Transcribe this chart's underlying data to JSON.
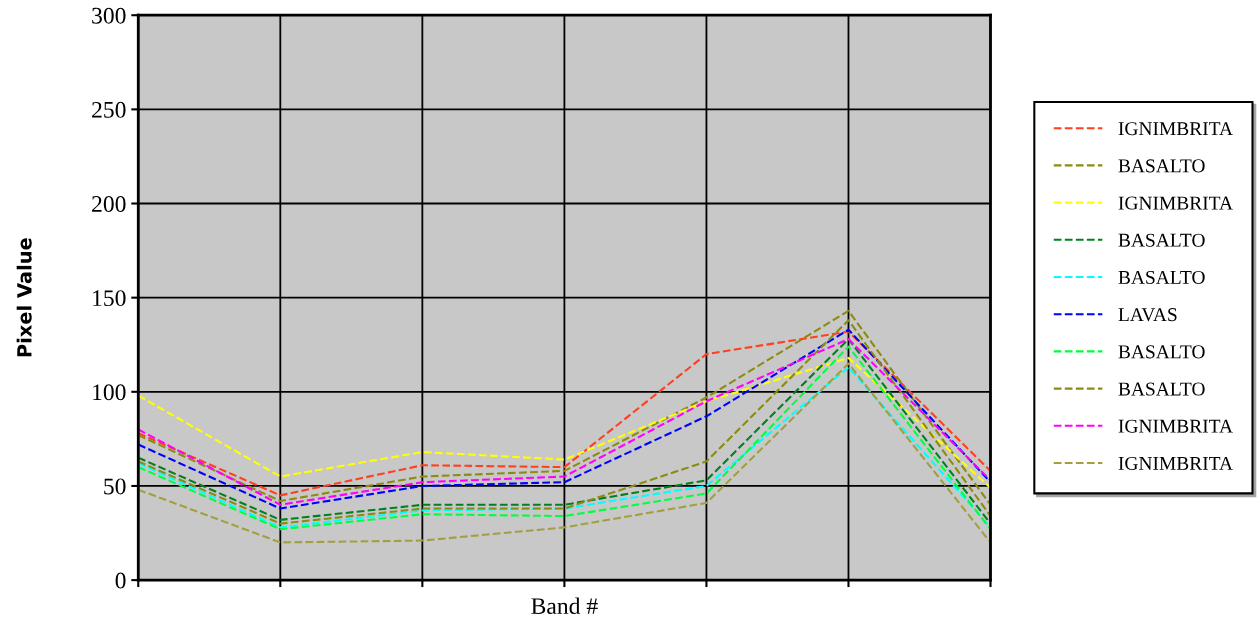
{
  "chart_data": {
    "type": "line",
    "xlabel": "Band #",
    "ylabel": "Pixel Value",
    "categories": [
      null,
      null,
      null,
      null,
      null,
      null,
      null
    ],
    "ylim": [
      0,
      300
    ],
    "yticks": [
      0,
      50,
      100,
      150,
      200,
      250,
      300
    ],
    "grid": true,
    "legend": "right",
    "line_style": "dashed",
    "marker": "none",
    "series": [
      {
        "name": "IGNIMBRITA",
        "color": "#ff4020",
        "values": [
          78,
          45,
          61,
          60,
          120,
          132,
          58
        ]
      },
      {
        "name": "BASALTO",
        "color": "#8b8b10",
        "values": [
          77,
          42,
          55,
          58,
          97,
          143,
          40
        ]
      },
      {
        "name": "IGNIMBRITA",
        "color": "#ffff00",
        "values": [
          98,
          55,
          68,
          64,
          95,
          118,
          49
        ]
      },
      {
        "name": "BASALTO",
        "color": "#008020",
        "values": [
          65,
          32,
          40,
          40,
          53,
          128,
          30
        ]
      },
      {
        "name": "BASALTO",
        "color": "#00ffff",
        "values": [
          62,
          28,
          37,
          38,
          50,
          113,
          28
        ]
      },
      {
        "name": "LAVAS",
        "color": "#0000ff",
        "values": [
          72,
          38,
          50,
          52,
          87,
          133,
          52
        ]
      },
      {
        "name": "BASALTO",
        "color": "#00ff40",
        "values": [
          60,
          27,
          35,
          34,
          46,
          124,
          27
        ]
      },
      {
        "name": "BASALTO",
        "color": "#8b8b10",
        "values": [
          63,
          30,
          38,
          38,
          63,
          138,
          34
        ]
      },
      {
        "name": "IGNIMBRITA",
        "color": "#ff00ff",
        "values": [
          80,
          40,
          52,
          55,
          95,
          128,
          53
        ]
      },
      {
        "name": "IGNIMBRITA",
        "color": "#a0a040",
        "values": [
          48,
          20,
          21,
          28,
          41,
          115,
          20
        ]
      }
    ]
  }
}
